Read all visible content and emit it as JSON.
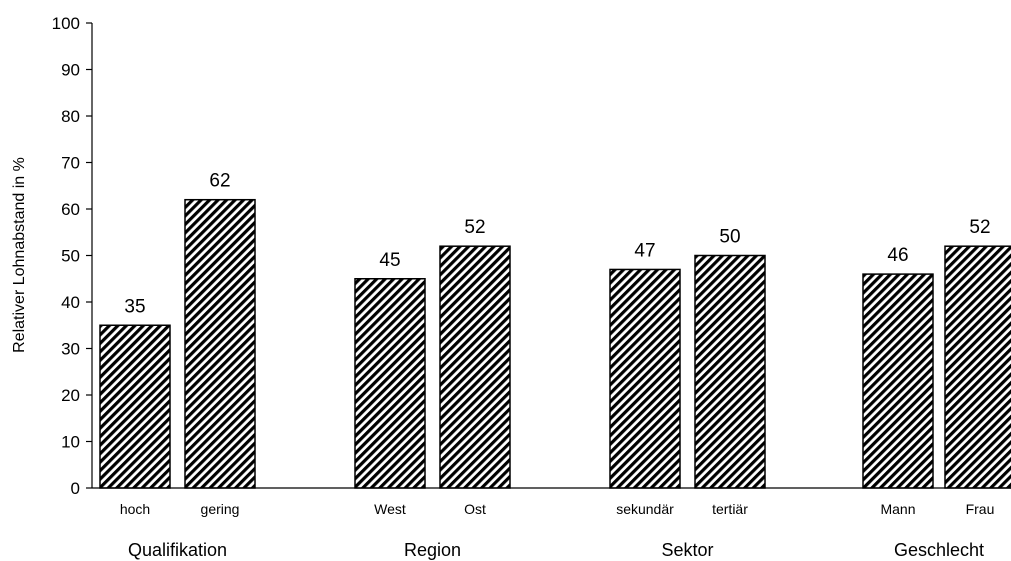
{
  "chart_data": {
    "type": "bar",
    "ylabel": "Relativer Lohnabstand in %",
    "ylim": [
      0,
      100
    ],
    "yticks": [
      0,
      10,
      20,
      30,
      40,
      50,
      60,
      70,
      80,
      90,
      100
    ],
    "grid": false,
    "legend": "none",
    "groups": [
      {
        "name": "Qualifikation",
        "categories": [
          "hoch",
          "gering"
        ],
        "values": [
          35,
          62
        ]
      },
      {
        "name": "Region",
        "categories": [
          "West",
          "Ost"
        ],
        "values": [
          45,
          52
        ]
      },
      {
        "name": "Sektor",
        "categories": [
          "sekundär",
          "tertiär"
        ],
        "values": [
          47,
          50
        ]
      },
      {
        "name": "Geschlecht",
        "categories": [
          "Mann",
          "Frau"
        ],
        "values": [
          46,
          52
        ]
      }
    ],
    "bar_style": {
      "fill": "hatched-diagonal",
      "edge_color": "#000000"
    }
  }
}
